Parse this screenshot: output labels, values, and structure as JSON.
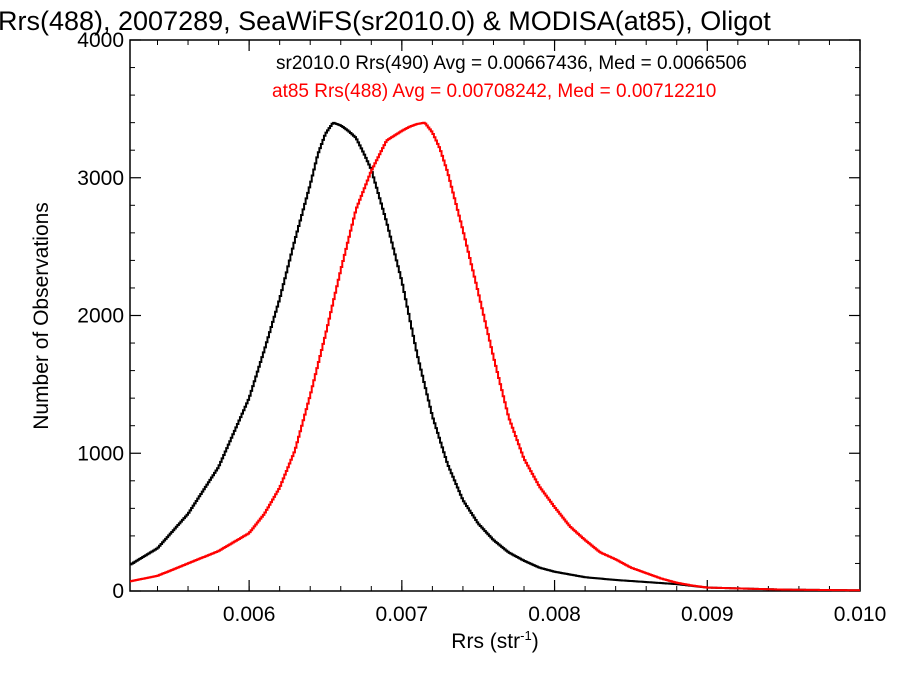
{
  "chart_data": {
    "type": "line",
    "title": "Rrs(488), 2007289, SeaWiFS(sr2010.0) & MODISA(at85), Oligot",
    "xlabel": "Rrs (str",
    "xlabel_sup": "-1",
    "xlabel_close": ")",
    "ylabel": "Number of Observations",
    "xlim": [
      0.00522,
      0.01
    ],
    "ylim": [
      0,
      4000
    ],
    "xticks": [
      {
        "value": 0.006,
        "label": "0.006"
      },
      {
        "value": 0.007,
        "label": "0.007"
      },
      {
        "value": 0.008,
        "label": "0.008"
      },
      {
        "value": 0.009,
        "label": "0.009"
      },
      {
        "value": 0.01,
        "label": "0.010"
      }
    ],
    "yticks": [
      {
        "value": 0,
        "label": "0"
      },
      {
        "value": 1000,
        "label": "1000"
      },
      {
        "value": 2000,
        "label": "2000"
      },
      {
        "value": 3000,
        "label": "3000"
      },
      {
        "value": 4000,
        "label": "4000"
      }
    ],
    "grid": false,
    "legend_position": "top",
    "series": [
      {
        "name": "sr2010.0 Rrs(490) Avg = 0.00667436, Med = 0.0066506",
        "color": "#000000",
        "x": [
          0.00522,
          0.0054,
          0.0056,
          0.0058,
          0.006,
          0.0061,
          0.0062,
          0.0063,
          0.0064,
          0.00645,
          0.0065,
          0.00655,
          0.0066,
          0.00665,
          0.0067,
          0.00675,
          0.0068,
          0.0069,
          0.007,
          0.0071,
          0.0072,
          0.0073,
          0.0074,
          0.0075,
          0.0076,
          0.0077,
          0.0078,
          0.0079,
          0.008,
          0.0082,
          0.0084,
          0.0086,
          0.0088,
          0.009,
          0.0095,
          0.01
        ],
        "y": [
          190,
          310,
          560,
          900,
          1400,
          1750,
          2120,
          2550,
          2950,
          3170,
          3320,
          3400,
          3380,
          3340,
          3290,
          3180,
          3060,
          2680,
          2250,
          1720,
          1270,
          920,
          660,
          490,
          370,
          280,
          220,
          170,
          140,
          100,
          80,
          65,
          50,
          25,
          10,
          5
        ]
      },
      {
        "name": "at85 Rrs(488) Avg = 0.00708242, Med = 0.00712210",
        "color": "#ff0000",
        "x": [
          0.00522,
          0.0054,
          0.0056,
          0.0058,
          0.006,
          0.0061,
          0.0062,
          0.0063,
          0.0064,
          0.0065,
          0.0066,
          0.0067,
          0.0068,
          0.0069,
          0.007,
          0.00705,
          0.0071,
          0.00715,
          0.0072,
          0.00725,
          0.0073,
          0.0074,
          0.0075,
          0.0076,
          0.0077,
          0.0078,
          0.0079,
          0.008,
          0.0081,
          0.0082,
          0.0083,
          0.0084,
          0.0085,
          0.0086,
          0.0087,
          0.0088,
          0.0089,
          0.009,
          0.0095,
          0.01
        ],
        "y": [
          70,
          110,
          200,
          290,
          420,
          560,
          750,
          1020,
          1420,
          1860,
          2330,
          2770,
          3050,
          3270,
          3340,
          3370,
          3390,
          3400,
          3330,
          3210,
          3040,
          2620,
          2170,
          1700,
          1260,
          960,
          760,
          610,
          470,
          370,
          280,
          230,
          170,
          130,
          90,
          60,
          40,
          25,
          10,
          5
        ]
      }
    ]
  }
}
